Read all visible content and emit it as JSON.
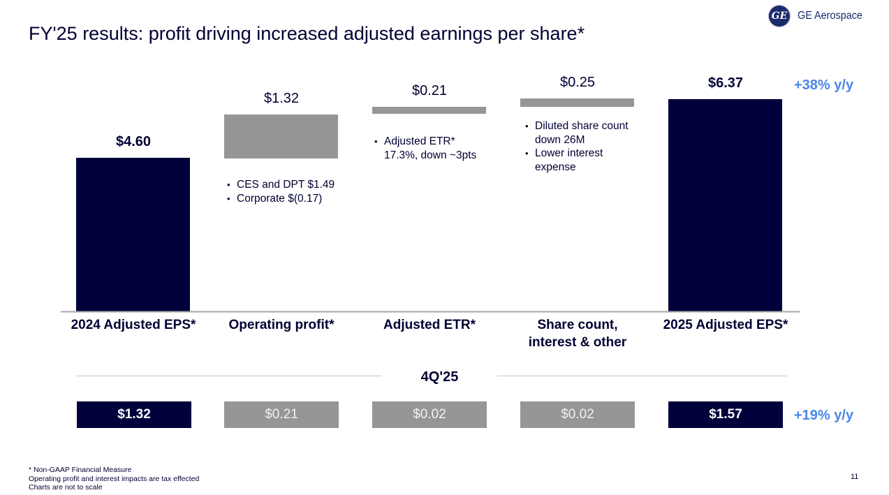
{
  "brand": {
    "logo_mark": "GE",
    "name": "GE Aerospace"
  },
  "title": "FY'25 results: profit driving increased adjusted earnings per share*",
  "colors": {
    "dark_navy": "#00003a",
    "grey": "#969696",
    "accent_blue": "#4a86e8",
    "text": "#000033"
  },
  "chart_data": {
    "type": "bar",
    "subtype": "waterfall",
    "title": "FY'25 results: profit driving increased adjusted earnings per share*",
    "categories": [
      "2024 Adjusted EPS*",
      "Operating profit*",
      "Adjusted ETR*",
      "Share count, interest & other",
      "2025 Adjusted EPS*"
    ],
    "category_lines": [
      [
        "2024 Adjusted EPS*"
      ],
      [
        "Operating profit*"
      ],
      [
        "Adjusted ETR*"
      ],
      [
        "Share count,",
        "interest & other"
      ],
      [
        "2025 Adjusted EPS*"
      ]
    ],
    "values": [
      4.6,
      1.32,
      0.21,
      0.25,
      6.37
    ],
    "value_labels": [
      "$4.60",
      "$1.32",
      "$0.21",
      "$0.25",
      "$6.37"
    ],
    "bar_kinds": [
      "total",
      "delta",
      "delta",
      "delta",
      "total"
    ],
    "note": "Charts are not to scale",
    "annotations": [
      {
        "category": "Operating profit*",
        "bullets": [
          "CES and DPT $1.49",
          "Corporate $(0.17)"
        ]
      },
      {
        "category": "Adjusted ETR*",
        "bullets": [
          "Adjusted ETR* 17.3%, down ~3pts"
        ],
        "lines": [
          "Adjusted ETR*",
          "17.3%, down ~3pts"
        ]
      },
      {
        "category": "Share count, interest & other",
        "bullets": [
          "Diluted share count down 26M",
          "Lower interest expense"
        ],
        "lines": [
          [
            "Diluted share count",
            "down 26M"
          ],
          [
            "Lower interest",
            "expense"
          ]
        ]
      }
    ],
    "yoy_fy": "+38% y/y",
    "quarter": {
      "label": "4Q'25",
      "values": [
        1.32,
        0.21,
        0.02,
        0.02,
        1.57
      ],
      "value_labels": [
        "$1.32",
        "$0.21",
        "$0.02",
        "$0.02",
        "$1.57"
      ],
      "yoy": "+19% y/y"
    }
  },
  "footnotes": [
    "* Non-GAAP Financial Measure",
    "Operating profit and interest impacts are tax effected",
    "Charts are not to scale"
  ],
  "page_number": "11"
}
